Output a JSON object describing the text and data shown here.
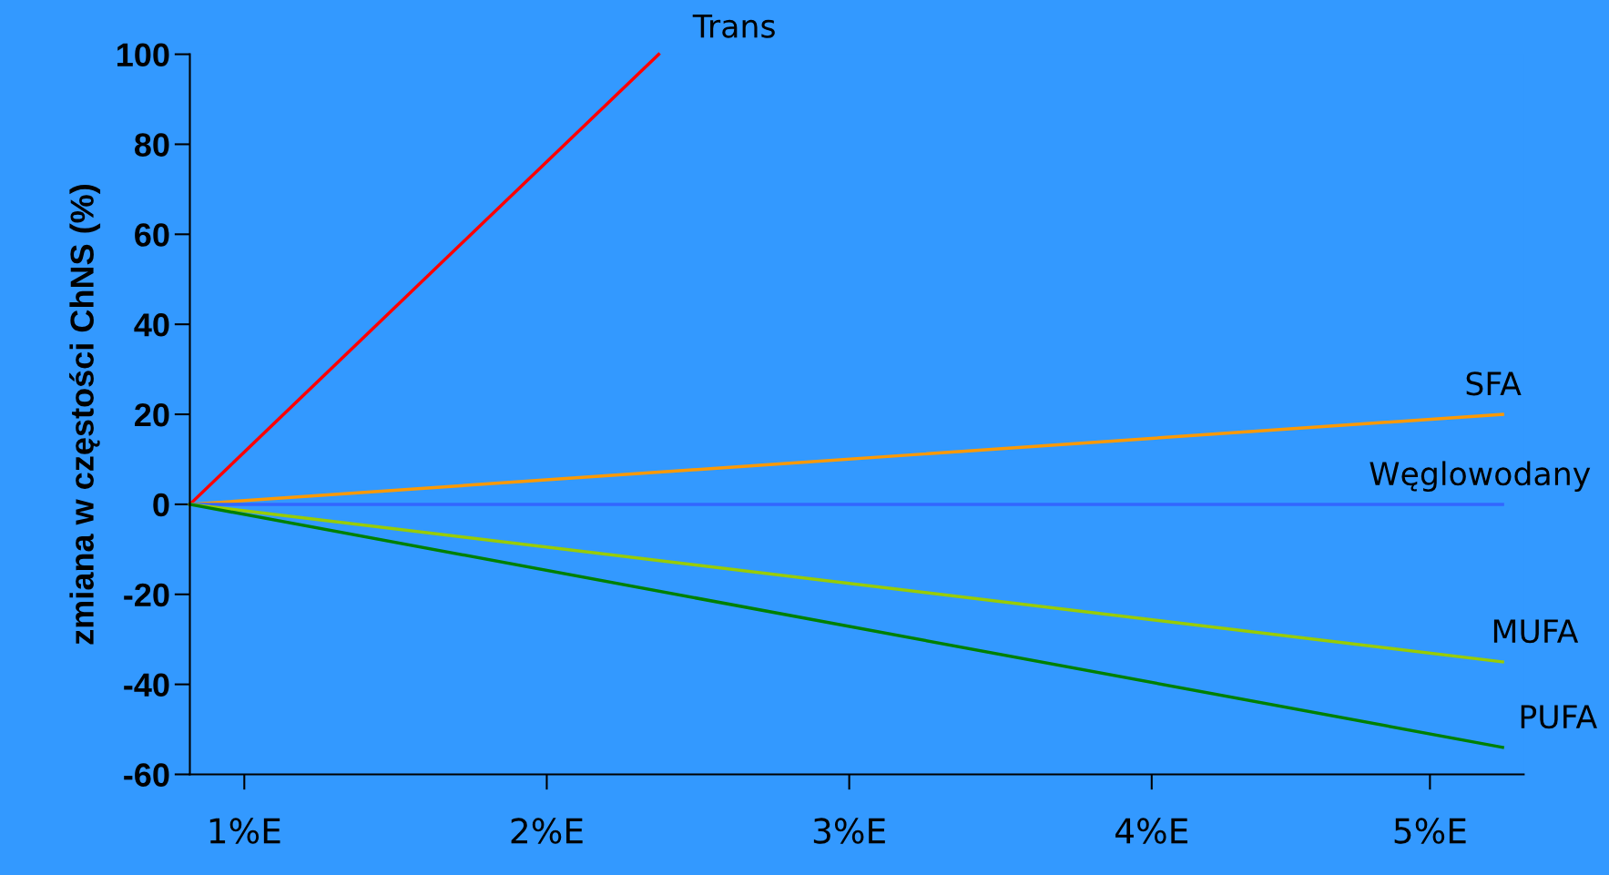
{
  "chart_data": {
    "type": "line",
    "ylabel": "zmiana w częstości ChNS (%)",
    "xlim": [
      0.82,
      5.23
    ],
    "xticks": [
      {
        "value": 1,
        "label": "1%E"
      },
      {
        "value": 2,
        "label": "2%E"
      },
      {
        "value": 3,
        "label": "3%E"
      },
      {
        "value": 4,
        "label": "4%E"
      },
      {
        "value": 4.92,
        "label": "5%E"
      }
    ],
    "ylim": [
      -60,
      100
    ],
    "yticks": [
      -60,
      -40,
      -20,
      0,
      20,
      40,
      60,
      80,
      100
    ],
    "grid": false,
    "legend": false,
    "marker": "none",
    "line_style": "solid",
    "series": [
      {
        "name": "Trans",
        "color": "#ff0000",
        "x": [
          0.82,
          2.37
        ],
        "values": [
          0,
          100
        ]
      },
      {
        "name": "SFA",
        "color": "#ff9900",
        "x": [
          0.82,
          5.16
        ],
        "values": [
          0,
          20
        ]
      },
      {
        "name": "Węglowodany",
        "color": "#3366ff",
        "x": [
          0.82,
          5.16
        ],
        "values": [
          0,
          0
        ]
      },
      {
        "name": "MUFA",
        "color": "#99cc00",
        "x": [
          0.82,
          5.16
        ],
        "values": [
          0,
          -35
        ]
      },
      {
        "name": "PUFA",
        "color": "#008000",
        "x": [
          0.82,
          5.16
        ],
        "values": [
          0,
          -54
        ]
      }
    ]
  }
}
